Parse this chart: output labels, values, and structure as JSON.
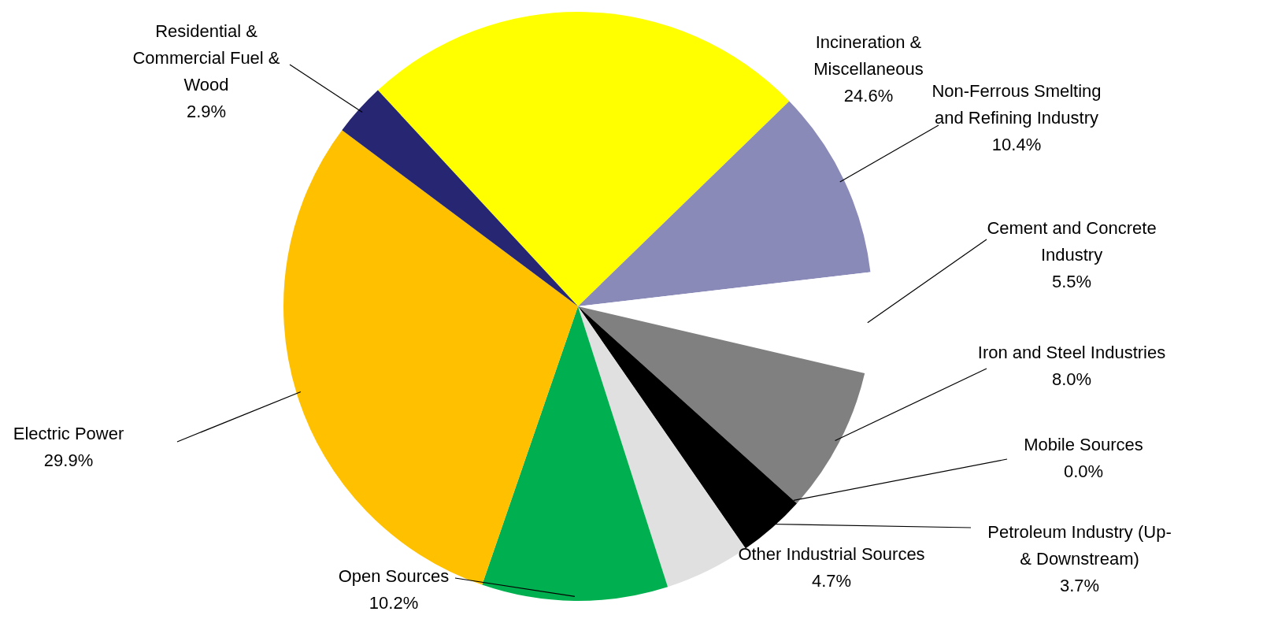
{
  "chart_data": {
    "type": "pie",
    "categories": [
      "Incineration & Miscellaneous",
      "Non-Ferrous Smelting and Refining Industry",
      "Cement and Concrete Industry",
      "Iron and Steel Industries",
      "Mobile Sources",
      "Petroleum Industry (Up- & Downstream)",
      "Other Industrial Sources",
      "Open Sources",
      "Electric Power",
      "Residential & Commercial Fuel & Wood"
    ],
    "values": [
      24.6,
      10.4,
      5.5,
      8.0,
      0.0,
      3.7,
      4.7,
      10.2,
      29.9,
      2.9
    ],
    "colors": [
      "#ffff00",
      "#8a8ab8",
      "#ffffff",
      "#808080",
      "#ff0000",
      "#000000",
      "#e0e0e0",
      "#00b050",
      "#ffc000",
      "#262673"
    ],
    "value_labels": [
      "24.6%",
      "10.4%",
      "5.5%",
      "8.0%",
      "0.0%",
      "3.7%",
      "4.7%",
      "10.2%",
      "29.9%",
      "2.9%"
    ],
    "legend": false
  }
}
